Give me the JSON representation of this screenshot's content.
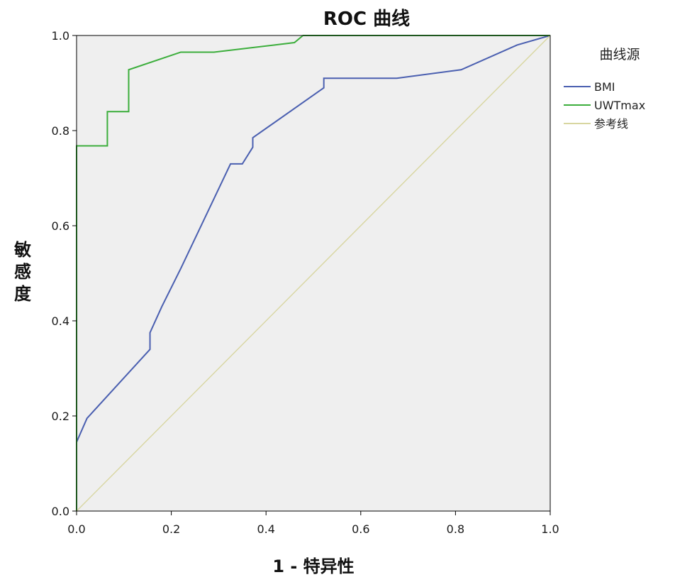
{
  "chart_data": {
    "type": "line",
    "title": "ROC 曲线",
    "xlabel": "1 - 特异性",
    "ylabel": "敏感度",
    "xlim": [
      0,
      1
    ],
    "ylim": [
      0,
      1
    ],
    "x_ticks": [
      "0.0",
      "0.2",
      "0.4",
      "0.6",
      "0.8",
      "1.0"
    ],
    "y_ticks": [
      "0.0",
      "0.2",
      "0.4",
      "0.6",
      "0.8",
      "1.0"
    ],
    "grid": false,
    "legend_title": "曲线源",
    "legend_position": "right",
    "series": [
      {
        "name": "BMI",
        "color": "#4a5fb0",
        "points": [
          [
            0.0,
            0.0
          ],
          [
            0.0,
            0.145
          ],
          [
            0.022,
            0.195
          ],
          [
            0.155,
            0.34
          ],
          [
            0.155,
            0.375
          ],
          [
            0.18,
            0.43
          ],
          [
            0.22,
            0.51
          ],
          [
            0.325,
            0.73
          ],
          [
            0.35,
            0.73
          ],
          [
            0.372,
            0.765
          ],
          [
            0.372,
            0.785
          ],
          [
            0.522,
            0.89
          ],
          [
            0.522,
            0.91
          ],
          [
            0.676,
            0.91
          ],
          [
            0.812,
            0.928
          ],
          [
            0.93,
            0.98
          ],
          [
            1.0,
            1.0
          ]
        ]
      },
      {
        "name": "UWTmax",
        "color": "#3cae3c",
        "points": [
          [
            0.0,
            0.0
          ],
          [
            0.0,
            0.768
          ],
          [
            0.065,
            0.768
          ],
          [
            0.065,
            0.84
          ],
          [
            0.11,
            0.84
          ],
          [
            0.11,
            0.928
          ],
          [
            0.22,
            0.965
          ],
          [
            0.29,
            0.965
          ],
          [
            0.46,
            0.985
          ],
          [
            0.478,
            1.0
          ],
          [
            1.0,
            1.0
          ]
        ]
      },
      {
        "name": "参考线",
        "color": "#d8d6a0",
        "points": [
          [
            0.0,
            0.0
          ],
          [
            1.0,
            1.0
          ]
        ]
      }
    ]
  }
}
